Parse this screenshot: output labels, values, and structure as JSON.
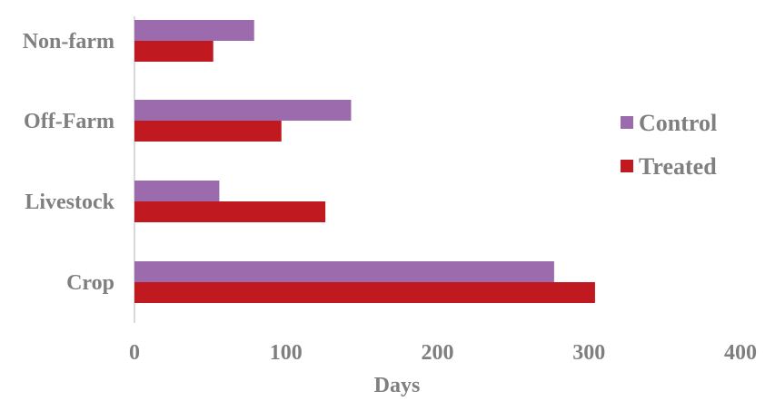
{
  "chart_data": {
    "type": "bar",
    "orientation": "horizontal",
    "categories": [
      "Crop",
      "Livestock",
      "Off-Farm",
      "Non-farm"
    ],
    "series": [
      {
        "name": "Control",
        "values": [
          277,
          56,
          143,
          79
        ],
        "color": "#9b6bae"
      },
      {
        "name": "Treated",
        "values": [
          304,
          126,
          97,
          52
        ],
        "color": "#c0191f"
      }
    ],
    "xlabel": "Days",
    "ylabel": "",
    "xlim": [
      0,
      400
    ],
    "xticks": [
      "0",
      "100",
      "200",
      "300",
      "400"
    ],
    "grid": false,
    "legend_position": "right"
  }
}
